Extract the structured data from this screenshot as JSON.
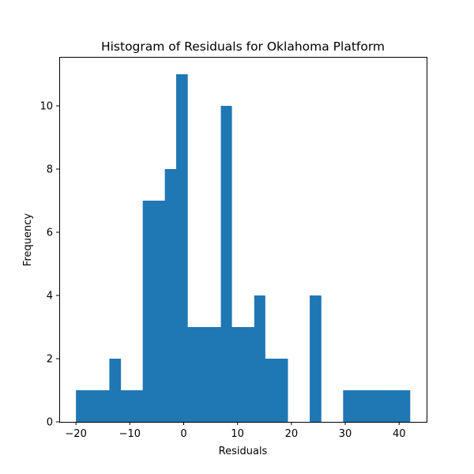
{
  "chart_data": {
    "type": "bar",
    "title": "Histogram of Residuals for Oklahoma Platform",
    "xlabel": "Residuals",
    "ylabel": "Frequency",
    "xlim": [
      -23.1,
      45.1
    ],
    "ylim": [
      0,
      11.55
    ],
    "xticks": [
      -20,
      -10,
      0,
      10,
      20,
      30,
      40
    ],
    "yticks": [
      0,
      2,
      4,
      6,
      8,
      10
    ],
    "grid": false,
    "bar_color": "#1f77b4",
    "bins": [
      {
        "x0": -20.0,
        "x1": -17.9,
        "count": 1
      },
      {
        "x0": -17.9,
        "x1": -15.9,
        "count": 1
      },
      {
        "x0": -15.9,
        "x1": -13.8,
        "count": 1
      },
      {
        "x0": -13.8,
        "x1": -11.7,
        "count": 2
      },
      {
        "x0": -11.7,
        "x1": -9.7,
        "count": 1
      },
      {
        "x0": -9.7,
        "x1": -7.6,
        "count": 1
      },
      {
        "x0": -7.6,
        "x1": -5.5,
        "count": 7
      },
      {
        "x0": -5.5,
        "x1": -3.5,
        "count": 7
      },
      {
        "x0": -3.5,
        "x1": -1.4,
        "count": 8
      },
      {
        "x0": -1.4,
        "x1": 0.7,
        "count": 11
      },
      {
        "x0": 0.7,
        "x1": 2.7,
        "count": 3
      },
      {
        "x0": 2.7,
        "x1": 4.8,
        "count": 3
      },
      {
        "x0": 4.8,
        "x1": 6.9,
        "count": 3
      },
      {
        "x0": 6.9,
        "x1": 8.9,
        "count": 10
      },
      {
        "x0": 8.9,
        "x1": 11.0,
        "count": 3
      },
      {
        "x0": 11.0,
        "x1": 13.1,
        "count": 3
      },
      {
        "x0": 13.1,
        "x1": 15.1,
        "count": 4
      },
      {
        "x0": 15.1,
        "x1": 17.2,
        "count": 2
      },
      {
        "x0": 17.2,
        "x1": 19.3,
        "count": 2
      },
      {
        "x0": 19.3,
        "x1": 21.3,
        "count": 0
      },
      {
        "x0": 21.3,
        "x1": 23.4,
        "count": 0
      },
      {
        "x0": 23.4,
        "x1": 25.5,
        "count": 4
      },
      {
        "x0": 25.5,
        "x1": 27.5,
        "count": 0
      },
      {
        "x0": 27.5,
        "x1": 29.6,
        "count": 0
      },
      {
        "x0": 29.6,
        "x1": 31.6,
        "count": 1
      },
      {
        "x0": 31.6,
        "x1": 33.7,
        "count": 1
      },
      {
        "x0": 33.7,
        "x1": 35.8,
        "count": 1
      },
      {
        "x0": 35.8,
        "x1": 37.8,
        "count": 1
      },
      {
        "x0": 37.8,
        "x1": 39.9,
        "count": 1
      },
      {
        "x0": 39.9,
        "x1": 42.0,
        "count": 1
      }
    ]
  }
}
